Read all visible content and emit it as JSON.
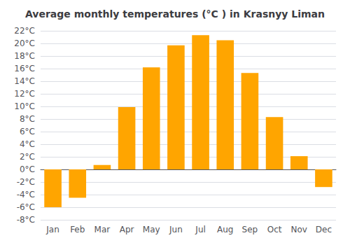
{
  "chart_data": {
    "type": "bar",
    "title": "Average monthly temperatures (°C ) in Krasnyy Liman",
    "categories": [
      "Jan",
      "Feb",
      "Mar",
      "Apr",
      "May",
      "Jun",
      "Jul",
      "Aug",
      "Sep",
      "Oct",
      "Nov",
      "Dec"
    ],
    "values": [
      -6.0,
      -4.5,
      0.7,
      9.9,
      16.2,
      19.7,
      21.3,
      20.5,
      15.3,
      8.3,
      2.1,
      -2.8
    ],
    "color": "#FFA500",
    "ylim": [
      -8,
      22
    ],
    "yticks": [
      {
        "value": -8,
        "label": "-8°C"
      },
      {
        "value": -6,
        "label": "-6°C"
      },
      {
        "value": -4,
        "label": "-4°C"
      },
      {
        "value": -2,
        "label": "-2°C"
      },
      {
        "value": 0,
        "label": "0°C"
      },
      {
        "value": 2,
        "label": "2°C"
      },
      {
        "value": 4,
        "label": "4°C"
      },
      {
        "value": 6,
        "label": "6°C"
      },
      {
        "value": 8,
        "label": "8°C"
      },
      {
        "value": 10,
        "label": "10°C"
      },
      {
        "value": 12,
        "label": "12°C"
      },
      {
        "value": 14,
        "label": "14°C"
      },
      {
        "value": 16,
        "label": "16°C"
      },
      {
        "value": 18,
        "label": "18°C"
      },
      {
        "value": 20,
        "label": "20°C"
      },
      {
        "value": 22,
        "label": "22°C"
      }
    ],
    "grid": true
  }
}
